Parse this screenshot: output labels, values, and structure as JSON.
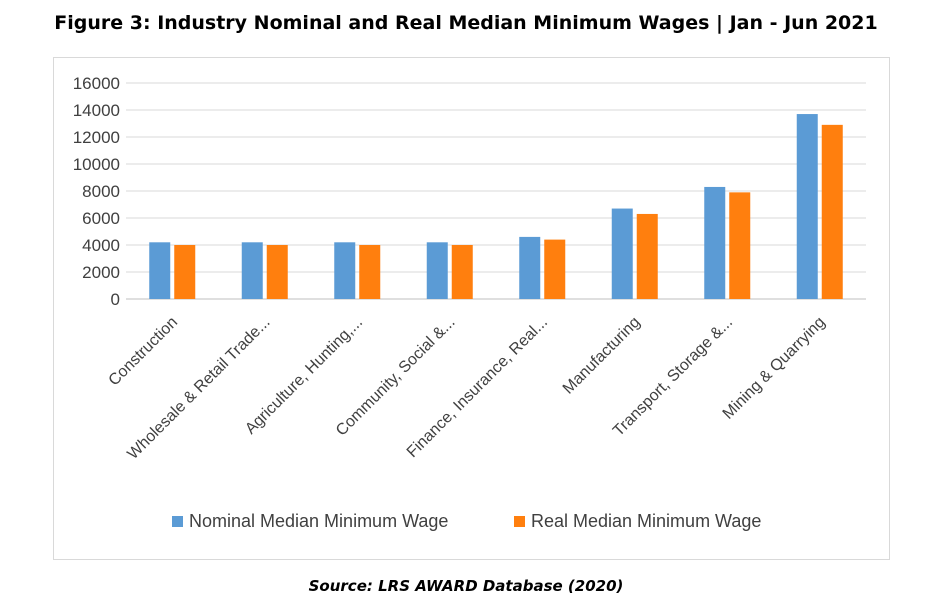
{
  "figure": {
    "title": "Figure 3: Industry Nominal and Real Median Minimum Wages | Jan - Jun 2021",
    "source": "Source: LRS AWARD Database (2020)"
  },
  "chart_data": {
    "type": "bar",
    "categories": [
      "Construction",
      "Wholesale & Retail Trade...",
      "Agriculture, Hunting,...",
      "Community, Social &...",
      "Finance, Insurance, Real...",
      "Manufacturing",
      "Transport, Storage &...",
      "Mining & Quarrying"
    ],
    "series": [
      {
        "name": "Nominal Median Minimum Wage",
        "color": "#5b9bd5",
        "values": [
          4200,
          4200,
          4200,
          4200,
          4600,
          6700,
          8300,
          13700
        ]
      },
      {
        "name": "Real Median Minimum Wage",
        "color": "#ff7f0e",
        "values": [
          4000,
          4000,
          4000,
          4000,
          4400,
          6300,
          7900,
          12900
        ]
      }
    ],
    "ylim": [
      0,
      16000
    ],
    "yticks": [
      0,
      2000,
      4000,
      6000,
      8000,
      10000,
      12000,
      14000,
      16000
    ],
    "grid": true,
    "legend_position": "bottom"
  }
}
